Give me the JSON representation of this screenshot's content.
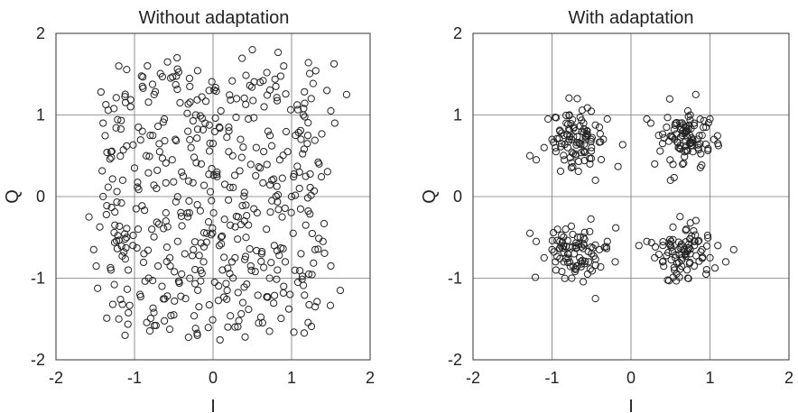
{
  "chart_data": [
    {
      "type": "scatter",
      "title": "Without adaptation",
      "xlabel": "I",
      "ylabel": "Q",
      "xlim": [
        -2,
        2
      ],
      "ylim": [
        -2,
        2
      ],
      "xticks": [
        "-2",
        "-1",
        "0",
        "1",
        "2"
      ],
      "yticks": [
        "-2",
        "-1",
        "0",
        "1",
        "2"
      ],
      "grid": true,
      "marker": "open-circle",
      "marker_color": "#222222",
      "points_note_count": 520,
      "series": [
        {
          "x": [
            -1.58,
            -1.52,
            -1.4,
            -1.3,
            -1.25,
            -1.2,
            -1.2,
            -1.15,
            -1.12,
            -1.1,
            -1.08,
            -1.05,
            -1.02,
            -1.0,
            -0.98,
            -0.95,
            -0.93,
            -0.9,
            -0.88,
            -0.85,
            -0.82,
            -0.8,
            -0.78,
            -0.75,
            -0.72,
            -0.7,
            -0.68,
            -0.65,
            -0.62,
            -0.6,
            -0.58,
            -0.55,
            -0.52,
            -0.5,
            -0.48,
            -0.45,
            -0.42,
            -0.4,
            -0.38,
            -0.35,
            -0.32,
            -0.3,
            -0.28,
            -0.25,
            -0.22,
            -0.2,
            -0.18,
            -0.15,
            -0.12,
            -0.1,
            -0.08,
            -0.05,
            -0.02,
            0.0,
            0.02,
            0.05,
            0.08,
            0.1,
            0.12,
            0.15,
            0.18,
            0.2,
            0.22,
            0.25,
            0.28,
            0.3,
            0.32,
            0.35,
            0.38,
            0.4,
            0.42,
            0.45,
            0.48,
            0.5,
            0.52,
            0.55,
            0.58,
            0.6,
            0.62,
            0.65,
            0.68,
            0.7,
            0.72,
            0.75,
            0.78,
            0.8,
            0.82,
            0.85,
            0.88,
            0.9,
            0.92,
            0.95,
            0.98,
            1.0,
            1.02,
            1.05,
            1.08,
            1.1,
            1.12,
            1.15,
            1.18,
            1.2,
            1.22,
            1.25,
            1.3,
            1.35,
            1.4,
            1.45,
            1.5,
            1.55,
            1.62,
            1.7,
            -1.4,
            -1.3,
            -1.1,
            -0.9,
            -0.6,
            -0.4,
            -0.2,
            0.2,
            0.4,
            0.6,
            0.9,
            1.1,
            1.3,
            1.5
          ],
          "y": [
            -0.25,
            -0.65,
            0.9,
            0.55,
            -0.35,
            1.6,
            -1.5,
            0.2,
            -1.7,
            0.62,
            -0.9,
            1.1,
            -0.6,
            0.35,
            -0.15,
            0.85,
            -1.2,
            1.35,
            -0.7,
            0.5,
            -1.0,
            0.75,
            -0.4,
            1.25,
            0.1,
            -0.85,
            0.55,
            -1.1,
            0.95,
            -0.3,
            1.65,
            -0.75,
            0.45,
            -1.45,
            0.7,
            -0.55,
            1.15,
            -0.95,
            0.25,
            -1.25,
            0.8,
            -0.2,
            0.6,
            -0.65,
            1.0,
            -0.1,
            -1.35,
            0.4,
            -0.8,
            0.9,
            -0.45,
            1.3,
            -0.05,
            0.65,
            -1.05,
            0.3,
            -0.6,
            1.05,
            -0.9,
            0.15,
            -1.15,
            0.85,
            -0.35,
            0.5,
            -0.75,
            1.2,
            -0.25,
            0.7,
            -1.3,
            0.05,
            -0.5,
            0.95,
            -0.85,
            1.8,
            -0.15,
            0.6,
            -1.55,
            0.35,
            -0.7,
            1.1,
            -0.4,
            0.8,
            -1.0,
            0.2,
            -0.6,
            1.35,
            -0.9,
            0.45,
            -0.25,
            1.6,
            -0.8,
            0.55,
            -1.2,
            0.0,
            -0.45,
            0.75,
            -1.05,
            0.3,
            -0.7,
            1.0,
            -0.35,
            0.65,
            -0.95,
            1.2,
            -1.35,
            0.4,
            -0.55,
            1.3,
            -0.85,
            0.9,
            -1.15,
            1.25,
            0.0,
            -0.9,
            -0.5,
            0.8,
            -0.2,
            0.3,
            -1.7,
            0.55,
            -0.3,
            1.4,
            -1.1,
            0.1,
            -0.65,
            1.05
          ]
        }
      ]
    },
    {
      "type": "scatter",
      "title": "With adaptation",
      "xlabel": "I",
      "ylabel": "Q",
      "xlim": [
        -2,
        2
      ],
      "ylim": [
        -2,
        2
      ],
      "xticks": [
        "-2",
        "-1",
        "0",
        "1",
        "2"
      ],
      "yticks": [
        "-2",
        "-1",
        "0",
        "1",
        "2"
      ],
      "grid": true,
      "marker": "open-circle",
      "marker_color": "#222222",
      "clusters": [
        {
          "center": [
            -0.7,
            0.7
          ],
          "spread": 0.17
        },
        {
          "center": [
            0.7,
            0.7
          ],
          "spread": 0.17
        },
        {
          "center": [
            -0.7,
            -0.7
          ],
          "spread": 0.17
        },
        {
          "center": [
            0.7,
            -0.7
          ],
          "spread": 0.17
        }
      ],
      "series": [
        {
          "x": [
            -1.28,
            -1.2,
            -1.1,
            -1.05,
            -1.0,
            -0.95,
            -0.9,
            -0.88,
            -0.85,
            -0.82,
            -0.8,
            -0.78,
            -0.75,
            -0.72,
            -0.7,
            -0.68,
            -0.65,
            -0.62,
            -0.6,
            -0.58,
            -0.55,
            -0.52,
            -0.5,
            -0.45,
            -0.4,
            -0.35,
            -0.3,
            0.2,
            0.25,
            0.3,
            0.35,
            0.4,
            0.45,
            0.5,
            0.55,
            0.6,
            0.62,
            0.65,
            0.68,
            0.7,
            0.72,
            0.75,
            0.78,
            0.8,
            0.82,
            0.85,
            0.9,
            0.95,
            1.0,
            1.05,
            1.1,
            -1.28,
            -1.2,
            -1.1,
            -1.0,
            -0.95,
            -0.9,
            -0.85,
            -0.8,
            -0.75,
            -0.7,
            -0.68,
            -0.65,
            -0.6,
            -0.55,
            -0.5,
            -0.45,
            -0.4,
            -0.3,
            -0.2,
            0.1,
            0.2,
            0.3,
            0.4,
            0.5,
            0.55,
            0.6,
            0.65,
            0.7,
            0.72,
            0.75,
            0.8,
            0.85,
            0.9,
            0.95,
            1.0,
            1.1,
            1.2,
            1.3
          ],
          "y": [
            0.5,
            0.45,
            0.6,
            0.95,
            0.7,
            0.55,
            0.8,
            0.65,
            0.75,
            0.9,
            0.6,
            1.0,
            0.7,
            0.85,
            0.5,
            1.2,
            0.65,
            0.8,
            0.9,
            0.55,
            0.75,
            0.4,
            0.6,
            0.2,
            0.85,
            0.7,
            0.95,
            0.95,
            0.9,
            0.4,
            0.75,
            0.65,
            0.85,
            0.2,
            0.7,
            0.6,
            0.9,
            0.75,
            0.55,
            0.8,
            1.05,
            0.65,
            0.7,
            0.9,
            1.25,
            0.6,
            0.75,
            0.85,
            0.95,
            0.7,
            0.65,
            -0.45,
            -0.55,
            -0.75,
            -0.65,
            -0.9,
            -0.55,
            -0.8,
            -0.7,
            -1.0,
            -0.6,
            -0.85,
            -0.75,
            -0.5,
            -0.95,
            -0.7,
            -1.25,
            -0.65,
            -0.55,
            -0.8,
            -0.6,
            -0.55,
            -0.75,
            -0.8,
            -0.6,
            -0.9,
            -0.65,
            -0.75,
            -0.4,
            -1.0,
            -0.7,
            -0.85,
            -0.55,
            -0.65,
            -0.95,
            -0.75,
            -0.6,
            -0.8,
            -0.65
          ]
        }
      ]
    }
  ]
}
